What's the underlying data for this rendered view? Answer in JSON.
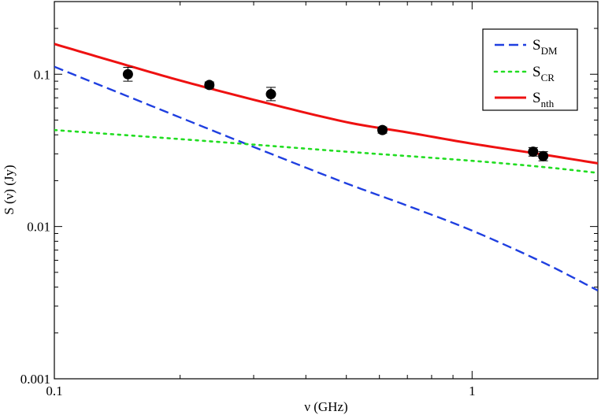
{
  "chart_data": {
    "type": "line",
    "xlabel": "ν (GHz)",
    "ylabel": "S (ν) (Jy)",
    "x_scale": "log",
    "y_scale": "log",
    "xlim": [
      0.1,
      2.0
    ],
    "ylim": [
      0.001,
      0.3
    ],
    "grid": false,
    "legend_position": "top-right",
    "x_tick_labels": [
      {
        "value": 0.1,
        "label": "0.1"
      },
      {
        "value": 1,
        "label": "1"
      }
    ],
    "y_tick_labels": [
      {
        "value": 0.001,
        "label": "0.001"
      },
      {
        "value": 0.01,
        "label": "0.01"
      },
      {
        "value": 0.1,
        "label": "0.1"
      }
    ],
    "series": [
      {
        "key": "dm",
        "legend_main": "S",
        "legend_sub": "DM",
        "style": "dashed",
        "color": "#1f3fe0",
        "x": [
          0.1,
          0.15,
          0.2,
          0.3,
          0.5,
          0.7,
          1.0,
          1.5,
          2.0
        ],
        "y": [
          0.112,
          0.0715,
          0.052,
          0.0333,
          0.0192,
          0.0137,
          0.0094,
          0.0057,
          0.0038
        ]
      },
      {
        "key": "cr",
        "legend_main": "S",
        "legend_sub": "CR",
        "style": "dotted",
        "color": "#22dd22",
        "x": [
          0.1,
          0.2,
          0.3,
          0.5,
          1.0,
          1.5,
          2.0
        ],
        "y": [
          0.043,
          0.0375,
          0.0345,
          0.031,
          0.027,
          0.0245,
          0.0225
        ]
      },
      {
        "key": "nth",
        "legend_main": "S",
        "legend_sub": "nth",
        "style": "solid",
        "color": "#ee1111",
        "x": [
          0.1,
          0.15,
          0.2,
          0.3,
          0.5,
          0.7,
          1.0,
          1.5,
          2.0
        ],
        "y": [
          0.158,
          0.114,
          0.091,
          0.068,
          0.0485,
          0.0415,
          0.035,
          0.0295,
          0.026
        ]
      }
    ],
    "data_points": [
      {
        "x": 0.15,
        "y": 0.1,
        "err_low": 0.09,
        "err_high": 0.111
      },
      {
        "x": 0.235,
        "y": 0.085,
        "err_low": 0.081,
        "err_high": 0.089
      },
      {
        "x": 0.33,
        "y": 0.074,
        "err_low": 0.067,
        "err_high": 0.082
      },
      {
        "x": 0.61,
        "y": 0.043,
        "err_low": 0.041,
        "err_high": 0.045
      },
      {
        "x": 1.4,
        "y": 0.031,
        "err_low": 0.029,
        "err_high": 0.033
      },
      {
        "x": 1.48,
        "y": 0.029,
        "err_low": 0.027,
        "err_high": 0.031
      }
    ]
  }
}
